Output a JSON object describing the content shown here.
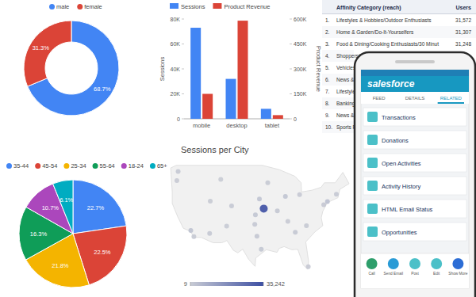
{
  "chart_data": [
    {
      "type": "donut",
      "categories": [
        "male",
        "female"
      ],
      "values": [
        68.7,
        31.3
      ],
      "value_labels": [
        "68.7%",
        "31.3%"
      ],
      "colors": [
        "#4285f4",
        "#db4437"
      ],
      "data_labels": true,
      "legend": "top"
    },
    {
      "type": "bar",
      "categories": [
        "mobile",
        "desktop",
        "tablet"
      ],
      "series": [
        {
          "name": "Sessions",
          "color": "#4285f4",
          "values": [
            73000,
            32000,
            8000
          ]
        },
        {
          "name": "Product Revenue",
          "color": "#db4437",
          "values": [
            150000,
            590000,
            22000
          ],
          "axis": "y2"
        }
      ],
      "ylabel": "Sessions",
      "y2label": "Product Revenue",
      "ylim": [
        0,
        80000
      ],
      "yticks": [
        0,
        {
          "value": 20000,
          "label": "20K"
        },
        {
          "value": 40000,
          "label": "40K"
        },
        {
          "value": 60000,
          "label": "60K"
        },
        {
          "value": 80000,
          "label": "80K"
        }
      ],
      "y2lim": [
        0,
        600000
      ],
      "y2ticks": [
        0,
        {
          "value": 150000,
          "label": "150K"
        },
        {
          "value": 300000,
          "label": "300K"
        },
        {
          "value": 450000,
          "label": "450K"
        },
        {
          "value": 600000,
          "label": "600K"
        }
      ],
      "grid": false,
      "legend": "top"
    },
    {
      "type": "pie",
      "categories": [
        "35-44",
        "45-54",
        "25-34",
        "55-64",
        "18-24",
        "65+"
      ],
      "values": [
        22.7,
        22.5,
        21.8,
        16.3,
        10.7,
        6.1
      ],
      "value_labels": [
        "22.7%",
        "22.5%",
        "21.8%",
        "16.3%",
        "10.7%",
        "6.1%"
      ],
      "colors": [
        "#4285f4",
        "#db4437",
        "#f4b400",
        "#0f9d58",
        "#ab47bc",
        "#00acc1"
      ],
      "data_labels": true,
      "legend": "top"
    },
    {
      "type": "map",
      "title": "Sessions per City",
      "points": [
        {
          "lon": -74.0,
          "lat": 40.7,
          "value": 3200
        },
        {
          "lon": -118.2,
          "lat": 34.1,
          "value": 2600
        },
        {
          "lon": -87.6,
          "lat": 41.9,
          "value": 2100
        },
        {
          "lon": -95.4,
          "lat": 29.8,
          "value": 1500
        },
        {
          "lon": -112.1,
          "lat": 33.4,
          "value": 900
        },
        {
          "lon": -75.2,
          "lat": 40.0,
          "value": 1100
        },
        {
          "lon": -96.8,
          "lat": 32.8,
          "value": 1300
        },
        {
          "lon": -117.2,
          "lat": 32.7,
          "value": 700
        },
        {
          "lon": -122.3,
          "lat": 47.6,
          "value": 1000
        },
        {
          "lon": -105.0,
          "lat": 39.7,
          "value": 900
        },
        {
          "lon": -84.4,
          "lat": 33.7,
          "value": 1200
        },
        {
          "lon": -80.2,
          "lat": 25.8,
          "value": 800
        },
        {
          "lon": -71.1,
          "lat": 42.4,
          "value": 900
        },
        {
          "lon": -93.3,
          "lat": 45.0,
          "value": 700
        },
        {
          "lon": -94.6,
          "lat": 39.1,
          "value": 35242
        },
        {
          "lon": -90.2,
          "lat": 38.6,
          "value": 1400
        },
        {
          "lon": -111.9,
          "lat": 40.8,
          "value": 400
        },
        {
          "lon": -122.7,
          "lat": 45.5,
          "value": 500
        },
        {
          "lon": -83.0,
          "lat": 42.3,
          "value": 800
        },
        {
          "lon": -86.8,
          "lat": 36.2,
          "value": 600
        },
        {
          "lon": -80.8,
          "lat": 35.2,
          "value": 700
        },
        {
          "lon": -96.0,
          "lat": 41.3,
          "value": 2200
        },
        {
          "lon": -97.3,
          "lat": 37.7,
          "value": 1800
        },
        {
          "lon": -108.5,
          "lat": 45.8,
          "value": 9
        },
        {
          "lon": -106.6,
          "lat": 35.1,
          "value": 300
        },
        {
          "lon": -97.5,
          "lat": 35.5,
          "value": 900
        }
      ],
      "colorbar": {
        "range": [
          9,
          35242
        ],
        "ticks": [
          9,
          {
            "value": 35242,
            "label": "35,242"
          }
        ],
        "colors": [
          "#c8cbd4",
          "#3d4fa3"
        ]
      }
    }
  ],
  "table": {
    "header": [
      "Affinity Category (reach)",
      "Users"
    ],
    "rows": [
      [
        "1.",
        "Lifestyles & Hobbies/Outdoor Enthusiasts",
        "31,572"
      ],
      [
        "2.",
        "Home & Garden/Do-It-Yourselfers",
        "31,307"
      ],
      [
        "3.",
        "Food & Dining/Cooking Enthusiasts/30 Minut",
        "31,248"
      ],
      [
        "4.",
        "Shoppers/",
        null
      ],
      [
        "5.",
        "Vehicles &",
        null
      ],
      [
        "6.",
        "News & P",
        null
      ],
      [
        "7.",
        "Lifestyles",
        null
      ],
      [
        "8.",
        "Banking",
        null
      ],
      [
        "9.",
        "News &",
        null
      ],
      [
        "10.",
        "Sports F",
        null
      ]
    ]
  },
  "phone": {
    "brand": "salesforce",
    "tabs": [
      "FEED",
      "DETAILS",
      "RELATED"
    ],
    "active_tab": 2,
    "items": [
      "Transactions",
      "Donations",
      "Open Activities",
      "Activity History",
      "HTML Email Status",
      "Opportunities"
    ],
    "actions": [
      "Call",
      "Send Email",
      "Post",
      "Edit",
      "Show More"
    ]
  }
}
